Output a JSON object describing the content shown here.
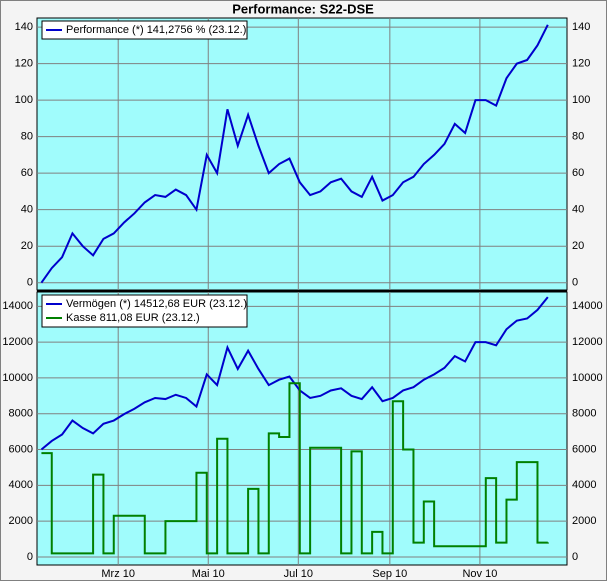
{
  "chart_data": [
    {
      "type": "line",
      "title": "Performance: S22-DSE",
      "x": [
        7,
        14,
        21,
        28,
        35,
        42,
        49,
        56,
        63,
        70,
        77,
        84,
        91,
        98,
        105,
        112,
        119,
        126,
        133,
        140,
        147,
        154,
        161,
        168,
        175,
        182,
        189,
        196,
        203,
        210,
        217,
        224,
        231,
        238,
        245,
        252,
        259,
        266,
        273,
        280,
        287,
        294,
        301,
        308,
        315,
        322,
        329,
        336,
        343,
        350
      ],
      "series": [
        {
          "name": "Performance (*) 141,2756 % (23.12.)",
          "color": "#0000cc",
          "values": [
            0,
            8,
            14,
            27,
            20,
            15,
            24,
            27,
            33,
            38,
            44,
            48,
            47,
            51,
            48,
            40,
            70,
            60,
            95,
            75,
            92,
            75,
            60,
            65,
            68,
            55,
            48,
            50,
            55,
            57,
            50,
            47,
            58,
            45,
            48,
            55,
            58,
            65,
            70,
            76,
            87,
            82,
            100,
            100,
            97,
            112,
            120,
            122,
            130,
            141.2756
          ]
        }
      ],
      "xlim": [
        4,
        363
      ],
      "ylim": [
        -4,
        145
      ],
      "yticks": [
        0,
        20,
        40,
        60,
        80,
        100,
        120,
        140
      ],
      "grid": true,
      "legend": "top-left"
    },
    {
      "type": "line",
      "x": [
        7,
        14,
        21,
        28,
        35,
        42,
        49,
        56,
        63,
        70,
        77,
        84,
        91,
        98,
        105,
        112,
        119,
        126,
        133,
        140,
        147,
        154,
        161,
        168,
        175,
        182,
        189,
        196,
        203,
        210,
        217,
        224,
        231,
        238,
        245,
        252,
        259,
        266,
        273,
        280,
        287,
        294,
        301,
        308,
        315,
        322,
        329,
        336,
        343,
        350
      ],
      "series": [
        {
          "name": "Vermögen (*) 14512,68 EUR (23.12.)",
          "color": "#0000cc",
          "values": [
            6000,
            6480,
            6840,
            7620,
            7200,
            6900,
            7440,
            7620,
            7980,
            8280,
            8640,
            8880,
            8820,
            9060,
            8880,
            8400,
            10200,
            9600,
            11700,
            10500,
            11520,
            10500,
            9600,
            9900,
            10080,
            9300,
            8880,
            9000,
            9300,
            9420,
            9000,
            8820,
            9480,
            8700,
            8880,
            9300,
            9480,
            9900,
            10200,
            10560,
            11220,
            10920,
            12000,
            12000,
            11820,
            12720,
            13200,
            13320,
            13800,
            14512.68
          ]
        },
        {
          "name": "Kasse 811,08 EUR (23.12.)",
          "color": "#008000",
          "step": true,
          "values": [
            5800,
            200,
            200,
            200,
            200,
            4600,
            200,
            2300,
            2300,
            2300,
            200,
            200,
            2000,
            2000,
            2000,
            4700,
            200,
            6600,
            200,
            200,
            3800,
            200,
            6900,
            6700,
            9700,
            200,
            6100,
            6100,
            6100,
            200,
            5900,
            200,
            1400,
            200,
            8700,
            6000,
            800,
            3100,
            600,
            600,
            600,
            600,
            600,
            4400,
            800,
            3200,
            5300,
            5300,
            800,
            811.08
          ]
        }
      ],
      "xlim": [
        4,
        363
      ],
      "ylim": [
        -450,
        14800
      ],
      "xticks": [
        {
          "value": 59,
          "label": "Mrz 10"
        },
        {
          "value": 120,
          "label": "Mai 10"
        },
        {
          "value": 181,
          "label": "Jul 10"
        },
        {
          "value": 243,
          "label": "Sep 10"
        },
        {
          "value": 304,
          "label": "Nov 10"
        }
      ],
      "yticks": [
        0,
        2000,
        4000,
        6000,
        8000,
        10000,
        12000,
        14000
      ],
      "grid": true,
      "legend": "top-left"
    }
  ]
}
